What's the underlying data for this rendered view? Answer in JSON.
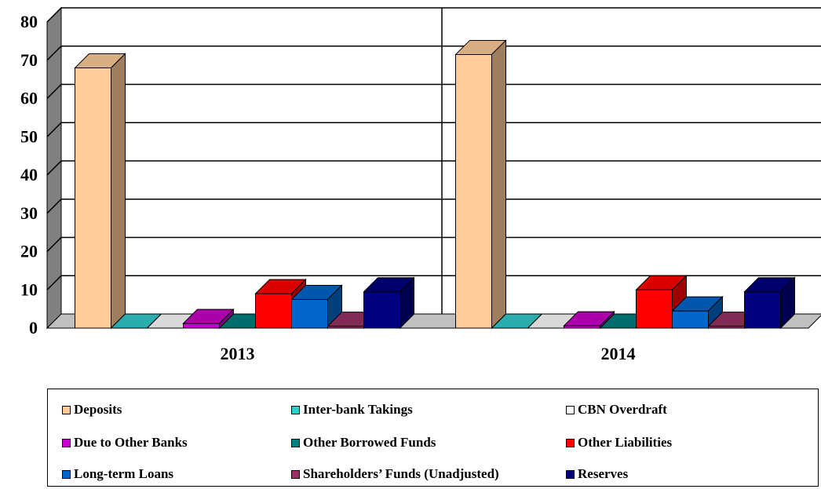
{
  "chart_data": {
    "type": "bar",
    "categories": [
      "2013",
      "2014"
    ],
    "ylim": [
      0,
      80
    ],
    "yticks": [
      0,
      10,
      20,
      30,
      40,
      50,
      60,
      70,
      80
    ],
    "grid": true,
    "legend_position": "bottom",
    "series": [
      {
        "name": "Deposits",
        "color": "#FFCC99",
        "values": [
          68,
          71.5
        ]
      },
      {
        "name": "Inter-bank Takings",
        "color": "#33CCCC",
        "values": [
          0,
          0
        ]
      },
      {
        "name": "CBN Overdraft",
        "color": "#FFFFFF",
        "values": [
          0,
          0
        ]
      },
      {
        "name": "Due to Other Banks",
        "color": "#CC00CC",
        "values": [
          1.2,
          0.6
        ]
      },
      {
        "name": "Other Borrowed Funds",
        "color": "#008080",
        "values": [
          0,
          0
        ]
      },
      {
        "name": "Other Liabilities",
        "color": "#FF0000",
        "values": [
          9,
          10
        ]
      },
      {
        "name": "Long-term Loans",
        "color": "#0066CC",
        "values": [
          7.5,
          4.5
        ]
      },
      {
        "name": "Shareholders’ Funds (Unadjusted)",
        "color": "#993366",
        "values": [
          0.5,
          0.5
        ]
      },
      {
        "name": "Reserves",
        "color": "#000080",
        "values": [
          9.5,
          9.5
        ]
      }
    ]
  }
}
